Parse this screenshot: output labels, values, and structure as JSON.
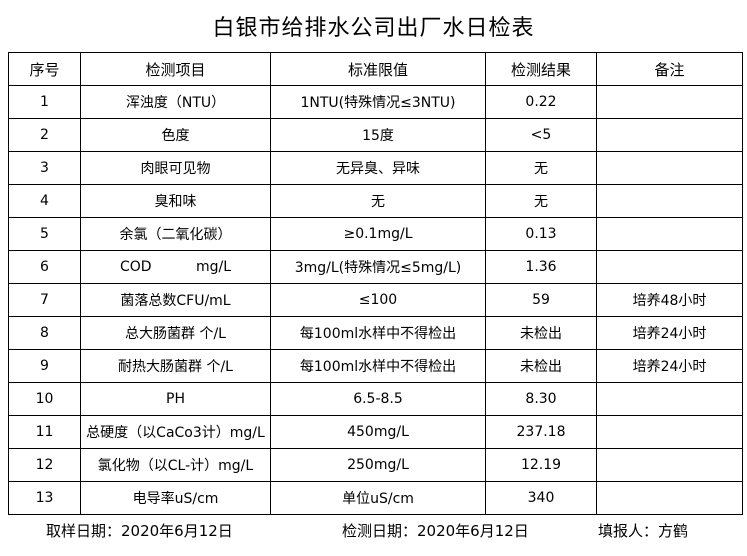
{
  "title": "白银市给排水公司出厂水日检表",
  "headers": [
    "序号",
    "检测项目",
    "标准限值",
    "检测结果",
    "备注"
  ],
  "rows": [
    [
      "1",
      "浑浊度（NTU）",
      "1NTU(特殊情况≤3NTU)",
      "0.22",
      ""
    ],
    [
      "2",
      "色度",
      "15度",
      "<5",
      ""
    ],
    [
      "3",
      "肉眼可见物",
      "无异臭、异味",
      "无",
      ""
    ],
    [
      "4",
      "臭和味",
      "无",
      "无",
      ""
    ],
    [
      "5",
      "余氯（二氧化碳）",
      "≥0.1mg/L",
      "0.13",
      ""
    ],
    [
      "6",
      "COD          mg/L",
      "3mg/L(特殊情况≤5mg/L)",
      "1.36",
      ""
    ],
    [
      "7",
      "菌落总数CFU/mL",
      "≤100",
      "59",
      "培养48小时"
    ],
    [
      "8",
      "总大肠菌群 个/L",
      "每100ml水样中不得检出",
      "未检出",
      "培养24小时"
    ],
    [
      "9",
      "耐热大肠菌群 个/L",
      "每100ml水样中不得检出",
      "未检出",
      "培养24小时"
    ],
    [
      "10",
      "PH",
      "6.5-8.5",
      "8.30",
      ""
    ],
    [
      "11",
      "总硬度（以CaCo3计）mg/L",
      "450mg/L",
      "237.18",
      ""
    ],
    [
      "12",
      "氯化物（以CL-计）mg/L",
      "250mg/L",
      "12.19",
      ""
    ],
    [
      "13",
      "电导率uS/cm",
      "单位uS/cm",
      "340",
      ""
    ]
  ],
  "footer": {
    "sample_date": "取样日期：2020年6月12日",
    "test_date": "检测日期：2020年6月12日",
    "reporter": "填报人：方鹤"
  }
}
